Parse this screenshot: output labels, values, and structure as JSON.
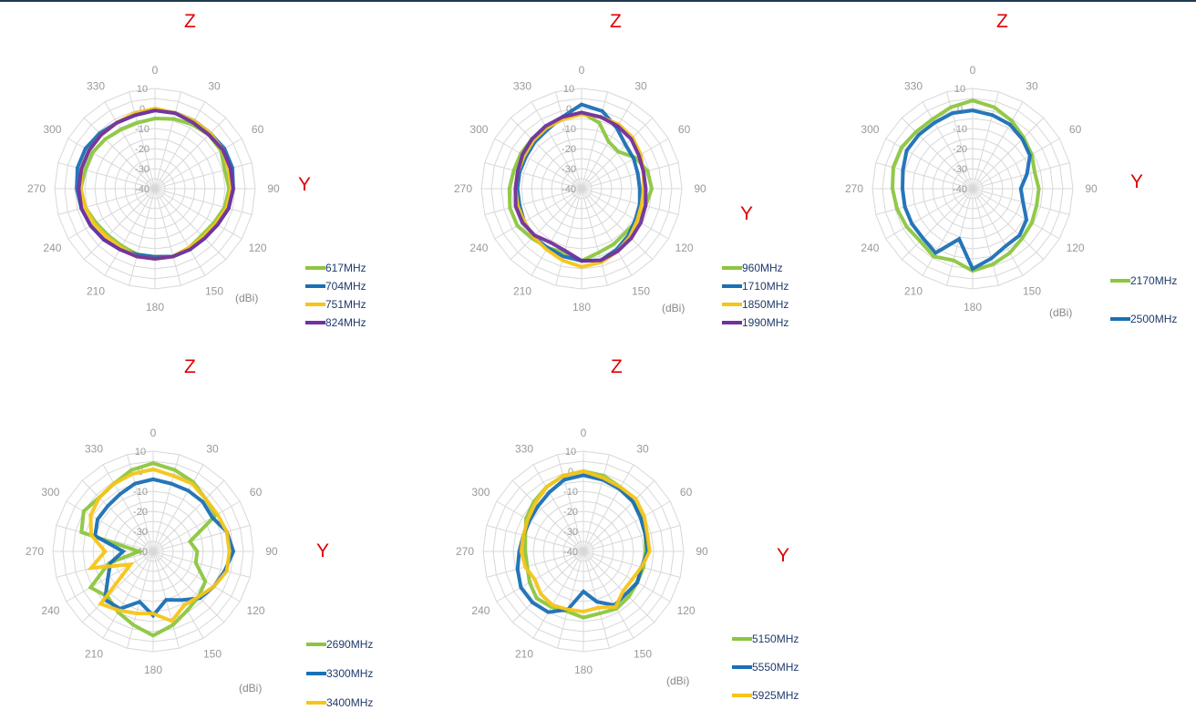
{
  "colors": {
    "axis_letters": "#e00000",
    "grid": "#d8d8d8",
    "tick_text": "#999999",
    "legend_text": "#1f3a6b"
  },
  "chart_data": [
    {
      "type": "radar",
      "z_label": "Z",
      "y_label": "Y",
      "unit": "(dBi)",
      "angles": [
        0,
        15,
        30,
        45,
        60,
        75,
        90,
        105,
        120,
        135,
        150,
        165,
        180,
        195,
        210,
        225,
        240,
        255,
        270,
        285,
        300,
        315,
        330,
        345
      ],
      "angle_ticks": [
        "0",
        "30",
        "60",
        "90",
        "120",
        "150",
        "180",
        "210",
        "240",
        "270",
        "300",
        "330"
      ],
      "radial_ticks": [
        "10",
        "0",
        "-10",
        "-20",
        "-30",
        "-40"
      ],
      "rlim": [
        -40,
        10
      ],
      "legend_placement": "bottom-right",
      "series": [
        {
          "name": "617MHz",
          "color": "#8cc63f",
          "values": [
            -5,
            -4,
            -3,
            -2,
            -2,
            -4,
            -3,
            -4,
            -6,
            -7,
            -6,
            -5,
            -6,
            -6,
            -7,
            -7,
            -6,
            -4,
            -3,
            -4,
            -4,
            -5,
            -6,
            -6
          ]
        },
        {
          "name": "704MHz",
          "color": "#1a6fb5",
          "values": [
            -1,
            -1,
            -1,
            -1,
            0,
            0,
            -1,
            -2,
            -4,
            -5,
            -5,
            -5,
            -6,
            -6,
            -5,
            -4,
            -3,
            -2,
            -1,
            0,
            0,
            -1,
            -2,
            -2
          ]
        },
        {
          "name": "751MHz",
          "color": "#f5c518",
          "values": [
            0,
            -1,
            -1,
            -1,
            -1,
            -2,
            -2,
            -3,
            -5,
            -6,
            -6,
            -5,
            -5,
            -5,
            -6,
            -6,
            -5,
            -4,
            -3,
            -2,
            -2,
            -2,
            -2,
            -1
          ]
        },
        {
          "name": "824MHz",
          "color": "#7030a0",
          "values": [
            -1,
            -1,
            -2,
            -2,
            -1,
            -1,
            -1,
            -2,
            -4,
            -5,
            -5,
            -5,
            -5,
            -5,
            -5,
            -4,
            -3,
            -2,
            -2,
            -2,
            -2,
            -2,
            -2,
            -2
          ]
        }
      ]
    },
    {
      "type": "radar",
      "z_label": "Z",
      "y_label": "Y",
      "unit": "(dBi)",
      "angles": [
        0,
        15,
        30,
        45,
        60,
        75,
        90,
        105,
        120,
        135,
        150,
        165,
        180,
        195,
        210,
        225,
        240,
        255,
        270,
        285,
        300,
        315,
        330,
        345
      ],
      "angle_ticks": [
        "0",
        "30",
        "60",
        "90",
        "120",
        "150",
        "180",
        "210",
        "240",
        "270",
        "300",
        "330"
      ],
      "radial_ticks": [
        "10",
        "0",
        "-10",
        "-20",
        "-30",
        "-40"
      ],
      "rlim": [
        -40,
        10
      ],
      "legend_placement": "bottom-right",
      "series": [
        {
          "name": "960MHz",
          "color": "#8cc63f",
          "values": [
            -2,
            -6,
            -13,
            -14,
            -9,
            -6,
            -5,
            -7,
            -8,
            -9,
            -8,
            -7,
            -4,
            -7,
            -6,
            -5,
            -3,
            -3,
            -4,
            -5,
            -5,
            -5,
            -5,
            -4
          ]
        },
        {
          "name": "1710MHz",
          "color": "#1a6fb5",
          "values": [
            2,
            0,
            -5,
            -9,
            -10,
            -11,
            -11,
            -10,
            -9,
            -7,
            -5,
            -3,
            -4,
            -5,
            -6,
            -6,
            -7,
            -8,
            -8,
            -8,
            -8,
            -7,
            -6,
            -3
          ]
        },
        {
          "name": "1850MHz",
          "color": "#f5c518",
          "values": [
            -3,
            -3,
            -3,
            -4,
            -6,
            -8,
            -9,
            -9,
            -8,
            -6,
            -4,
            -2,
            -1,
            -3,
            -5,
            -6,
            -7,
            -7,
            -7,
            -7,
            -7,
            -6,
            -5,
            -4
          ]
        },
        {
          "name": "1990MHz",
          "color": "#7030a0",
          "values": [
            -2,
            -3,
            -4,
            -5,
            -7,
            -8,
            -8,
            -7,
            -6,
            -5,
            -4,
            -3,
            -4,
            -8,
            -9,
            -7,
            -6,
            -6,
            -7,
            -7,
            -6,
            -5,
            -4,
            -3
          ]
        }
      ]
    },
    {
      "type": "radar",
      "z_label": "Z",
      "y_label": "Y",
      "unit": "(dBi)",
      "angles": [
        0,
        15,
        30,
        45,
        60,
        75,
        90,
        105,
        120,
        135,
        150,
        165,
        180,
        195,
        210,
        225,
        240,
        255,
        270,
        285,
        300,
        315,
        330,
        345
      ],
      "angle_ticks": [
        "0",
        "30",
        "60",
        "90",
        "120",
        "150",
        "180",
        "210",
        "240",
        "270",
        "300",
        "330"
      ],
      "radial_ticks": [
        "10",
        "0",
        "-10",
        "-20",
        "-30",
        "-40"
      ],
      "rlim": [
        -40,
        10
      ],
      "legend_placement": "bottom-right",
      "series": [
        {
          "name": "2170MHz",
          "color": "#8cc63f",
          "values": [
            4,
            2,
            -1,
            -4,
            -6,
            -8,
            -7,
            -7,
            -6,
            -5,
            -3,
            -1,
            1,
            -3,
            -1,
            -3,
            -2,
            -1,
            0,
            1,
            1,
            0,
            0,
            2
          ]
        },
        {
          "name": "2500MHz",
          "color": "#1a6fb5",
          "values": [
            -1,
            -2,
            -3,
            -5,
            -7,
            -12,
            -16,
            -14,
            -9,
            -7,
            -7,
            -4,
            0,
            -14,
            -3,
            -5,
            -5,
            -5,
            -5,
            -4,
            -2,
            -2,
            -2,
            -1
          ]
        }
      ]
    },
    {
      "type": "radar",
      "z_label": "Z",
      "y_label": "Y",
      "unit": "(dBi)",
      "angles": [
        0,
        15,
        30,
        45,
        60,
        75,
        90,
        105,
        120,
        135,
        150,
        165,
        180,
        195,
        210,
        225,
        240,
        255,
        270,
        285,
        300,
        315,
        330,
        345
      ],
      "angle_ticks": [
        "0",
        "30",
        "60",
        "90",
        "120",
        "150",
        "180",
        "210",
        "240",
        "270",
        "300",
        "330"
      ],
      "radial_ticks": [
        "10",
        "0",
        "-10",
        "-20",
        "-30",
        "-40"
      ],
      "rlim": [
        -40,
        10
      ],
      "legend_placement": "bottom-right",
      "series": [
        {
          "name": "2690MHz",
          "color": "#8cc63f",
          "values": [
            4,
            2,
            0,
            -3,
            -4,
            -21,
            -18,
            -18,
            -10,
            -8,
            -6,
            -2,
            2,
            -2,
            -5,
            -8,
            -4,
            -17,
            -33,
            -3,
            0,
            -2,
            -1,
            2
          ]
        },
        {
          "name": "3300MHz",
          "color": "#1a6fb5",
          "values": [
            -4,
            -5,
            -5,
            -5,
            -6,
            -2,
            0,
            -3,
            -5,
            -7,
            -12,
            -15,
            -8,
            -14,
            -7,
            -6,
            -14,
            -18,
            -25,
            -10,
            -8,
            -8,
            -7,
            -5
          ]
        },
        {
          "name": "3400MHz",
          "color": "#f5c518",
          "values": [
            1,
            -1,
            -1,
            -3,
            -3,
            -2,
            -2,
            -2,
            -5,
            -8,
            -9,
            -4,
            -9,
            -8,
            -6,
            -3,
            -27,
            -8,
            -16,
            -8,
            -4,
            -2,
            -1,
            0
          ]
        }
      ]
    },
    {
      "type": "radar",
      "z_label": "Z",
      "y_label": "Y",
      "unit": "(dBi)",
      "angles": [
        0,
        15,
        30,
        45,
        60,
        75,
        90,
        105,
        120,
        135,
        150,
        165,
        180,
        195,
        210,
        225,
        240,
        255,
        270,
        285,
        300,
        315,
        330,
        345
      ],
      "angle_ticks": [
        "0",
        "30",
        "60",
        "90",
        "120",
        "150",
        "180",
        "210",
        "240",
        "270",
        "300",
        "330"
      ],
      "radial_ticks": [
        "10",
        "0",
        "-10",
        "-20",
        "-30",
        "-40"
      ],
      "rlim": [
        -40,
        10
      ],
      "legend_placement": "bottom-right",
      "series": [
        {
          "name": "5150MHz",
          "color": "#8cc63f",
          "values": [
            0,
            -1,
            -3,
            -5,
            -6,
            -8,
            -9,
            -9,
            -9,
            -8,
            -7,
            -8,
            -7,
            -9,
            -8,
            -7,
            -9,
            -11,
            -11,
            -10,
            -7,
            -5,
            -3,
            -1
          ]
        },
        {
          "name": "5550MHz",
          "color": "#1a6fb5",
          "values": [
            -2,
            -3,
            -4,
            -5,
            -7,
            -8,
            -8,
            -10,
            -9,
            -10,
            -9,
            -14,
            -20,
            -10,
            -5,
            -4,
            -4,
            -6,
            -8,
            -9,
            -9,
            -8,
            -6,
            -3
          ]
        },
        {
          "name": "5925MHz",
          "color": "#f5c518",
          "values": [
            0,
            -2,
            -3,
            -3,
            -5,
            -7,
            -7,
            -10,
            -12,
            -12,
            -8,
            -11,
            -10,
            -10,
            -9,
            -10,
            -12,
            -10,
            -9,
            -9,
            -8,
            -6,
            -3,
            -1
          ]
        }
      ]
    }
  ]
}
